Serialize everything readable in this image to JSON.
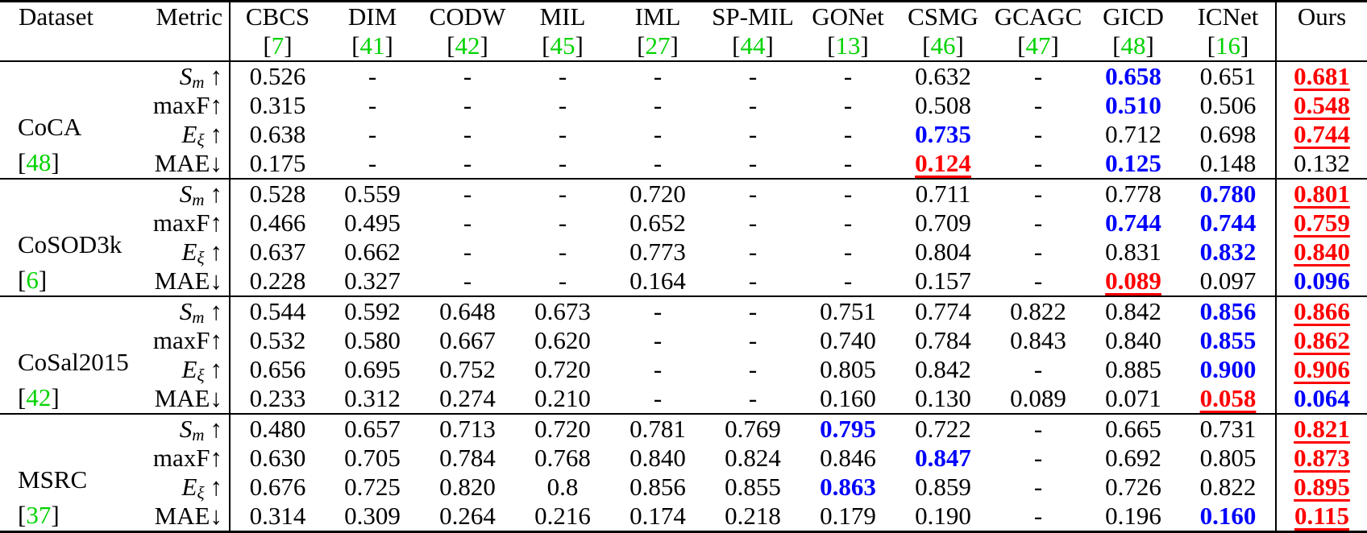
{
  "header": {
    "dataset_label": "Dataset",
    "metric_label": "Metric"
  },
  "colors": {
    "best": "#ff0000",
    "second_best": "#0000ff",
    "citation_green": "#00d300"
  },
  "methods": [
    {
      "name": "CBCS",
      "cite": "[7]"
    },
    {
      "name": "DIM",
      "cite": "[41]"
    },
    {
      "name": "CODW",
      "cite": "[42]"
    },
    {
      "name": "MIL",
      "cite": "[45]"
    },
    {
      "name": "IML",
      "cite": "[27]"
    },
    {
      "name": "SP-MIL",
      "cite": "[44]"
    },
    {
      "name": "GONet",
      "cite": "[13]"
    },
    {
      "name": "CSMG",
      "cite": "[46]"
    },
    {
      "name": "GCAGC",
      "cite": "[47]"
    },
    {
      "name": "GICD",
      "cite": "[48]"
    },
    {
      "name": "ICNet",
      "cite": "[16]"
    },
    {
      "name": "Ours",
      "cite": ""
    }
  ],
  "metrics": [
    {
      "base": "S",
      "sub": "m",
      "arrow": "↑",
      "italic": true
    },
    {
      "base": "maxF",
      "sub": "",
      "arrow": "↑",
      "italic": false
    },
    {
      "base": "E",
      "sub": "ξ",
      "arrow": "↑",
      "italic": true
    },
    {
      "base": "MAE",
      "sub": "",
      "arrow": "↓",
      "italic": false
    }
  ],
  "style_legend": {
    "r": "best (red, bold, underlined)",
    "b": "second best (blue, bold)",
    "": "plain"
  },
  "blocks": [
    {
      "dataset": "CoCA",
      "cite": "[48]",
      "rows": [
        {
          "metric": 0,
          "values": [
            "0.526",
            "-",
            "-",
            "-",
            "-",
            "-",
            "-",
            "0.632",
            "-",
            "0.658",
            "0.651",
            "0.681"
          ],
          "styles": [
            "",
            "",
            "",
            "",
            "",
            "",
            "",
            "",
            "",
            "b",
            "",
            "r"
          ]
        },
        {
          "metric": 1,
          "values": [
            "0.315",
            "-",
            "-",
            "-",
            "-",
            "-",
            "-",
            "0.508",
            "-",
            "0.510",
            "0.506",
            "0.548"
          ],
          "styles": [
            "",
            "",
            "",
            "",
            "",
            "",
            "",
            "",
            "",
            "b",
            "",
            "r"
          ]
        },
        {
          "metric": 2,
          "values": [
            "0.638",
            "-",
            "-",
            "-",
            "-",
            "-",
            "-",
            "0.735",
            "-",
            "0.712",
            "0.698",
            "0.744"
          ],
          "styles": [
            "",
            "",
            "",
            "",
            "",
            "",
            "",
            "b",
            "",
            "",
            "",
            "r"
          ]
        },
        {
          "metric": 3,
          "values": [
            "0.175",
            "-",
            "-",
            "-",
            "-",
            "-",
            "-",
            "0.124",
            "-",
            "0.125",
            "0.148",
            "0.132"
          ],
          "styles": [
            "",
            "",
            "",
            "",
            "",
            "",
            "",
            "r",
            "",
            "b",
            "",
            ""
          ]
        }
      ]
    },
    {
      "dataset": "CoSOD3k",
      "cite": "[6]",
      "rows": [
        {
          "metric": 0,
          "values": [
            "0.528",
            "0.559",
            "-",
            "-",
            "0.720",
            "-",
            "-",
            "0.711",
            "-",
            "0.778",
            "0.780",
            "0.801"
          ],
          "styles": [
            "",
            "",
            "",
            "",
            "",
            "",
            "",
            "",
            "",
            "",
            "b",
            "r"
          ]
        },
        {
          "metric": 1,
          "values": [
            "0.466",
            "0.495",
            "-",
            "-",
            "0.652",
            "-",
            "-",
            "0.709",
            "-",
            "0.744",
            "0.744",
            "0.759"
          ],
          "styles": [
            "",
            "",
            "",
            "",
            "",
            "",
            "",
            "",
            "",
            "b",
            "b",
            "r"
          ]
        },
        {
          "metric": 2,
          "values": [
            "0.637",
            "0.662",
            "-",
            "-",
            "0.773",
            "-",
            "-",
            "0.804",
            "-",
            "0.831",
            "0.832",
            "0.840"
          ],
          "styles": [
            "",
            "",
            "",
            "",
            "",
            "",
            "",
            "",
            "",
            "",
            "b",
            "r"
          ]
        },
        {
          "metric": 3,
          "values": [
            "0.228",
            "0.327",
            "-",
            "-",
            "0.164",
            "-",
            "-",
            "0.157",
            "-",
            "0.089",
            "0.097",
            "0.096"
          ],
          "styles": [
            "",
            "",
            "",
            "",
            "",
            "",
            "",
            "",
            "",
            "r",
            "",
            "b"
          ]
        }
      ]
    },
    {
      "dataset": "CoSal2015",
      "cite": "[42]",
      "rows": [
        {
          "metric": 0,
          "values": [
            "0.544",
            "0.592",
            "0.648",
            "0.673",
            "-",
            "-",
            "0.751",
            "0.774",
            "0.822",
            "0.842",
            "0.856",
            "0.866"
          ],
          "styles": [
            "",
            "",
            "",
            "",
            "",
            "",
            "",
            "",
            "",
            "",
            "b",
            "r"
          ]
        },
        {
          "metric": 1,
          "values": [
            "0.532",
            "0.580",
            "0.667",
            "0.620",
            "-",
            "-",
            "0.740",
            "0.784",
            "0.843",
            "0.840",
            "0.855",
            "0.862"
          ],
          "styles": [
            "",
            "",
            "",
            "",
            "",
            "",
            "",
            "",
            "",
            "",
            "b",
            "r"
          ]
        },
        {
          "metric": 2,
          "values": [
            "0.656",
            "0.695",
            "0.752",
            "0.720",
            "-",
            "-",
            "0.805",
            "0.842",
            "-",
            "0.885",
            "0.900",
            "0.906"
          ],
          "styles": [
            "",
            "",
            "",
            "",
            "",
            "",
            "",
            "",
            "",
            "",
            "b",
            "r"
          ]
        },
        {
          "metric": 3,
          "values": [
            "0.233",
            "0.312",
            "0.274",
            "0.210",
            "-",
            "-",
            "0.160",
            "0.130",
            "0.089",
            "0.071",
            "0.058",
            "0.064"
          ],
          "styles": [
            "",
            "",
            "",
            "",
            "",
            "",
            "",
            "",
            "",
            "",
            "r",
            "b"
          ]
        }
      ]
    },
    {
      "dataset": "MSRC",
      "cite": "[37]",
      "rows": [
        {
          "metric": 0,
          "values": [
            "0.480",
            "0.657",
            "0.713",
            "0.720",
            "0.781",
            "0.769",
            "0.795",
            "0.722",
            "-",
            "0.665",
            "0.731",
            "0.821"
          ],
          "styles": [
            "",
            "",
            "",
            "",
            "",
            "",
            "b",
            "",
            "",
            "",
            "",
            "r"
          ]
        },
        {
          "metric": 1,
          "values": [
            "0.630",
            "0.705",
            "0.784",
            "0.768",
            "0.840",
            "0.824",
            "0.846",
            "0.847",
            "-",
            "0.692",
            "0.805",
            "0.873"
          ],
          "styles": [
            "",
            "",
            "",
            "",
            "",
            "",
            "",
            "b",
            "",
            "",
            "",
            "r"
          ]
        },
        {
          "metric": 2,
          "values": [
            "0.676",
            "0.725",
            "0.820",
            "0.8",
            "0.856",
            "0.855",
            "0.863",
            "0.859",
            "-",
            "0.726",
            "0.822",
            "0.895"
          ],
          "styles": [
            "",
            "",
            "",
            "",
            "",
            "",
            "b",
            "",
            "",
            "",
            "",
            "r"
          ]
        },
        {
          "metric": 3,
          "values": [
            "0.314",
            "0.309",
            "0.264",
            "0.216",
            "0.174",
            "0.218",
            "0.179",
            "0.190",
            "-",
            "0.196",
            "0.160",
            "0.115"
          ],
          "styles": [
            "",
            "",
            "",
            "",
            "",
            "",
            "",
            "",
            "",
            "",
            "b",
            "r"
          ]
        }
      ]
    }
  ]
}
